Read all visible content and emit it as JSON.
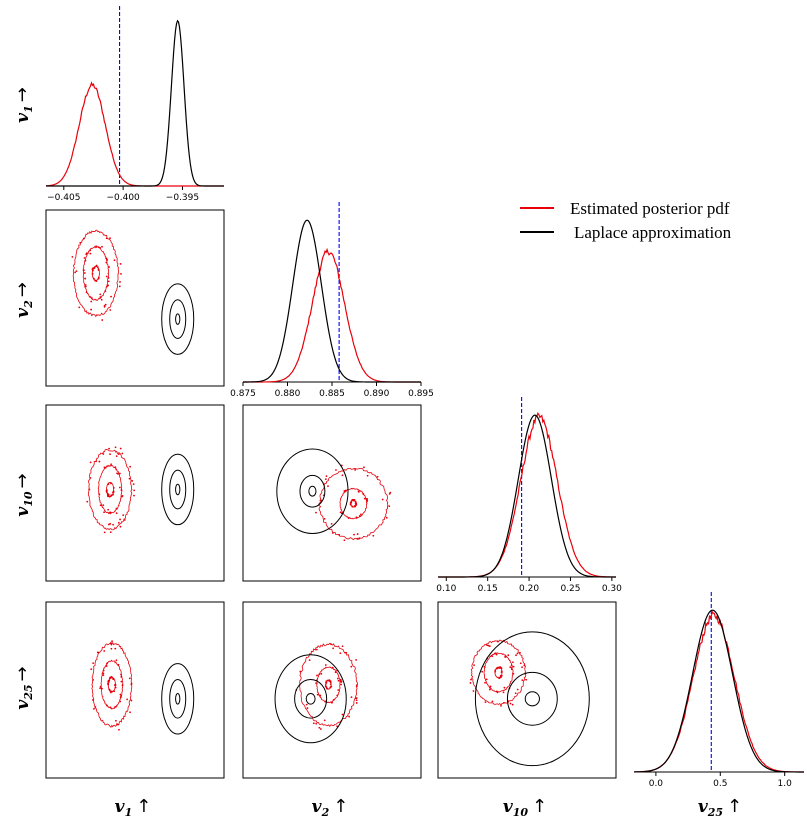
{
  "legend": {
    "estimated": "Estimated posterior pdf",
    "laplace": "Laplace approximation"
  },
  "colors": {
    "estimated": "#e8000b",
    "laplace": "#000000",
    "truth": "#0000ff"
  },
  "row_labels": [
    {
      "base": "v",
      "sub": "1",
      "arrow": "→"
    },
    {
      "base": "v",
      "sub": "2",
      "arrow": "→"
    },
    {
      "base": "v",
      "sub": "10",
      "arrow": "→"
    },
    {
      "base": "v",
      "sub": "25",
      "arrow": "→"
    }
  ],
  "col_labels": [
    {
      "base": "v",
      "sub": "1",
      "arrow": "↑"
    },
    {
      "base": "v",
      "sub": "2",
      "arrow": "↑"
    },
    {
      "base": "v",
      "sub": "10",
      "arrow": "↑"
    },
    {
      "base": "v",
      "sub": "25",
      "arrow": "↑"
    }
  ],
  "chart_data": [
    {
      "type": "line",
      "panel": "marginal-v1",
      "xlim": [
        -0.4065,
        -0.3915
      ],
      "ticks": [
        "−0.405",
        "−0.400",
        "−0.395"
      ],
      "tick_values": [
        -0.405,
        -0.4,
        -0.395
      ],
      "true_value": -0.4003,
      "series": [
        {
          "name": "Estimated posterior pdf",
          "mean": -0.4026,
          "sd": 0.0011,
          "peak": 0.58
        },
        {
          "name": "Laplace approximation",
          "mean": -0.3954,
          "sd": 0.00053,
          "peak": 0.95
        }
      ]
    },
    {
      "type": "line",
      "panel": "marginal-v2",
      "xlim": [
        0.875,
        0.895
      ],
      "ticks": [
        "0.875",
        "0.880",
        "0.885",
        "0.890",
        "0.895"
      ],
      "tick_values": [
        0.875,
        0.88,
        0.885,
        0.89,
        0.895
      ],
      "true_value": 0.8858,
      "series": [
        {
          "name": "Estimated posterior pdf",
          "mean": 0.8846,
          "sd": 0.0018,
          "peak": 0.75
        },
        {
          "name": "Laplace approximation",
          "mean": 0.8822,
          "sd": 0.0016,
          "peak": 0.93
        }
      ]
    },
    {
      "type": "line",
      "panel": "marginal-v10",
      "xlim": [
        0.09,
        0.305
      ],
      "ticks": [
        "0.10",
        "0.15",
        "0.20",
        "0.25",
        "0.30"
      ],
      "tick_values": [
        0.1,
        0.15,
        0.2,
        0.25,
        0.3
      ],
      "true_value": 0.191,
      "series": [
        {
          "name": "Estimated posterior pdf",
          "mean": 0.212,
          "sd": 0.022,
          "peak": 0.92
        },
        {
          "name": "Laplace approximation",
          "mean": 0.207,
          "sd": 0.02,
          "peak": 0.93
        }
      ]
    },
    {
      "type": "line",
      "panel": "marginal-v25",
      "xlim": [
        -0.17,
        1.15
      ],
      "ticks": [
        "0.0",
        "0.5",
        "1.0"
      ],
      "tick_values": [
        0,
        0.5,
        1
      ],
      "true_value": 0.43,
      "series": [
        {
          "name": "Estimated posterior pdf",
          "mean": 0.45,
          "sd": 0.16,
          "peak": 0.9
        },
        {
          "name": "Laplace approximation",
          "mean": 0.44,
          "sd": 0.155,
          "peak": 0.93
        }
      ]
    },
    {
      "type": "scatter",
      "panel": "joint-v2-v1",
      "estimated": {
        "cx": 0.28,
        "cy": 0.36,
        "rx": [
          0.25,
          0.14,
          0.04
        ],
        "ry": [
          0.48,
          0.3,
          0.08
        ]
      },
      "laplace": {
        "cx": 0.74,
        "cy": 0.62,
        "rx": [
          0.09,
          0.045,
          0.012
        ],
        "ry": [
          0.2,
          0.11,
          0.03
        ]
      }
    },
    {
      "type": "scatter",
      "panel": "joint-v10-v1",
      "estimated": {
        "cx": 0.36,
        "cy": 0.48,
        "rx": [
          0.24,
          0.13,
          0.04
        ],
        "ry": [
          0.45,
          0.27,
          0.08
        ]
      },
      "laplace": {
        "cx": 0.74,
        "cy": 0.48,
        "rx": [
          0.09,
          0.045,
          0.012
        ],
        "ry": [
          0.2,
          0.11,
          0.03
        ]
      }
    },
    {
      "type": "scatter",
      "panel": "joint-v10-v2",
      "estimated": {
        "cx": 0.62,
        "cy": 0.56,
        "rx": [
          0.38,
          0.15,
          0.03
        ],
        "ry": [
          0.4,
          0.17,
          0.04
        ]
      },
      "laplace": {
        "cx": 0.39,
        "cy": 0.49,
        "rx": [
          0.2,
          0.07,
          0.02
        ],
        "ry": [
          0.24,
          0.09,
          0.028
        ]
      }
    },
    {
      "type": "scatter",
      "panel": "joint-v25-v1",
      "estimated": {
        "cx": 0.37,
        "cy": 0.47,
        "rx": [
          0.22,
          0.12,
          0.04
        ],
        "ry": [
          0.47,
          0.27,
          0.08
        ]
      },
      "laplace": {
        "cx": 0.74,
        "cy": 0.55,
        "rx": [
          0.09,
          0.045,
          0.012
        ],
        "ry": [
          0.2,
          0.11,
          0.03
        ]
      }
    },
    {
      "type": "scatter",
      "panel": "joint-v25-v2",
      "estimated": {
        "cx": 0.48,
        "cy": 0.47,
        "rx": [
          0.32,
          0.13,
          0.03
        ],
        "ry": [
          0.46,
          0.2,
          0.05
        ]
      },
      "laplace": {
        "cx": 0.38,
        "cy": 0.55,
        "rx": [
          0.2,
          0.09,
          0.025
        ],
        "ry": [
          0.25,
          0.11,
          0.03
        ]
      }
    },
    {
      "type": "scatter",
      "panel": "joint-v25-v10",
      "estimated": {
        "cx": 0.34,
        "cy": 0.4,
        "rx": [
          0.3,
          0.16,
          0.04
        ],
        "ry": [
          0.36,
          0.22,
          0.06
        ]
      },
      "laplace": {
        "cx": 0.53,
        "cy": 0.55,
        "rx": [
          0.32,
          0.14,
          0.04
        ],
        "ry": [
          0.38,
          0.15,
          0.04
        ]
      }
    }
  ]
}
